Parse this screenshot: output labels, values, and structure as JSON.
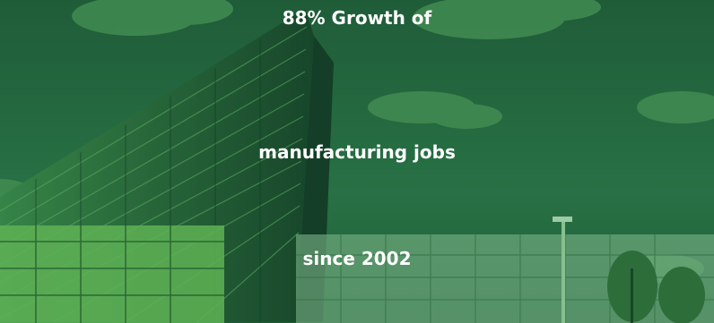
{
  "headline": {
    "line1": "88% Growth of",
    "line2": "manufacturing jobs",
    "line3": "since 2002"
  },
  "colors": {
    "overlay_green": "#1f6b3d",
    "sky": "#2f7a4a",
    "text": "#ffffff"
  }
}
